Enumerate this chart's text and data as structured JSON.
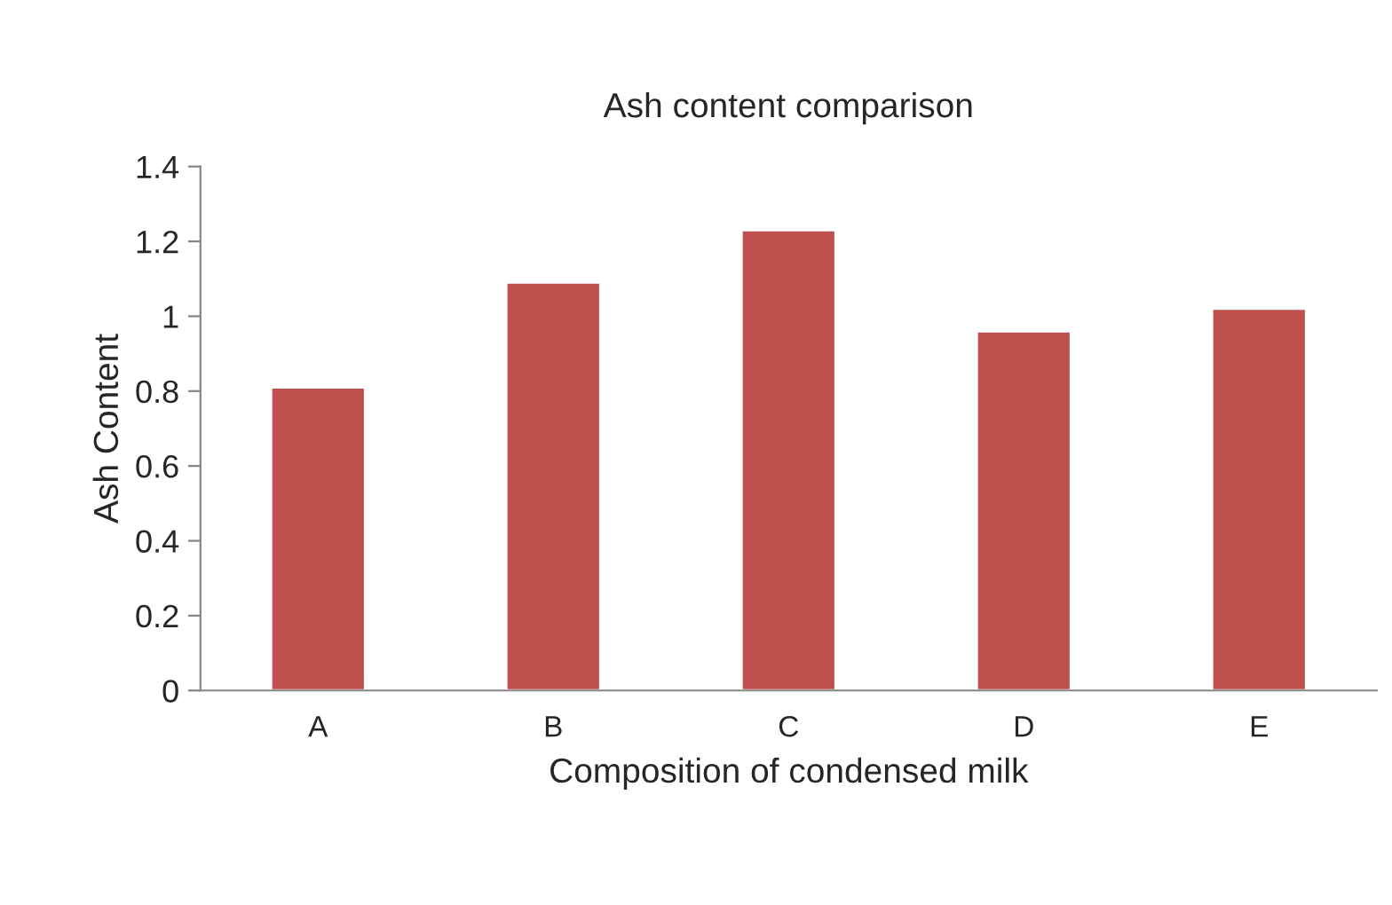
{
  "chart_data": {
    "type": "bar",
    "title": "Ash content comparison",
    "xlabel": "Composition of condensed milk",
    "ylabel": "Ash Content",
    "categories": [
      "A",
      "B",
      "C",
      "D",
      "E"
    ],
    "values": [
      0.81,
      1.09,
      1.23,
      0.96,
      1.02
    ],
    "color": "#c0504d",
    "ylim": [
      0,
      1.4
    ],
    "yticks": [
      0,
      0.2,
      0.4,
      0.6,
      0.8,
      1,
      1.2,
      1.4
    ],
    "grid": false,
    "legend": false
  }
}
